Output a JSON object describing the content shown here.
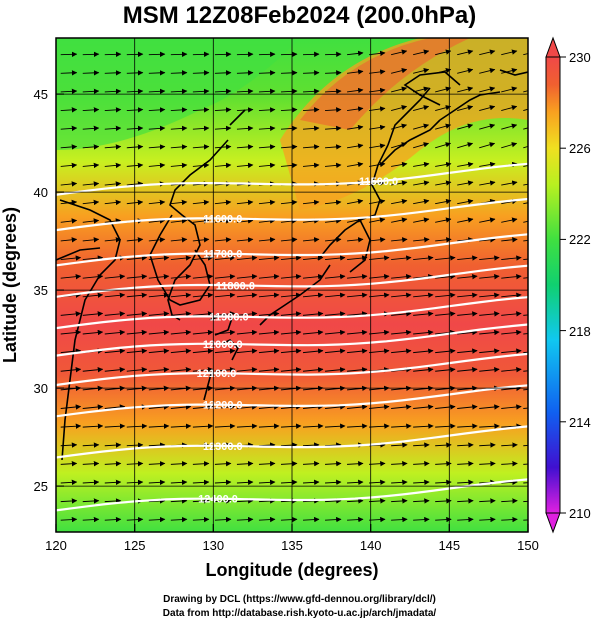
{
  "title": "MSM 12Z08Feb2024 (200.0hPa)",
  "x_axis": {
    "label": "Longitude (degrees)",
    "ticks": [
      "120",
      "125",
      "130",
      "135",
      "140",
      "145",
      "150"
    ],
    "range": [
      120,
      150
    ]
  },
  "y_axis": {
    "label": "Latitude  (degrees)",
    "ticks": [
      "25",
      "30",
      "35",
      "40",
      "45"
    ],
    "range": [
      22.4,
      47.6
    ]
  },
  "colorbar": {
    "ticks": [
      "210",
      "214",
      "218",
      "222",
      "226",
      "230"
    ],
    "range": [
      210,
      230
    ],
    "colors": [
      "#e020e0",
      "#4010d0",
      "#1060f0",
      "#10c8f0",
      "#10d070",
      "#40e040",
      "#b8f020",
      "#f0e020",
      "#f8a020",
      "#f06030",
      "#f04848"
    ]
  },
  "contours": [
    {
      "label": "11500.0",
      "lat": 39.6
    },
    {
      "label": "11600.0",
      "lat": 37.8
    },
    {
      "label": "11700.0",
      "lat": 36.0
    },
    {
      "label": "11800.0",
      "lat": 34.4
    },
    {
      "label": "11900.0",
      "lat": 32.8
    },
    {
      "label": "12000.0",
      "lat": 31.4
    },
    {
      "label": "12100.0",
      "lat": 29.9
    },
    {
      "label": "12200.0",
      "lat": 28.3
    },
    {
      "label": "12300.0",
      "lat": 26.2
    },
    {
      "label": "12400.0",
      "lat": 23.5
    }
  ],
  "footer": {
    "line1": "Drawing by DCL (https://www.gfd-dennou.org/library/dcl/)",
    "line2": "Data from http://database.rish.kyoto-u.ac.jp/arch/jmadata/"
  }
}
